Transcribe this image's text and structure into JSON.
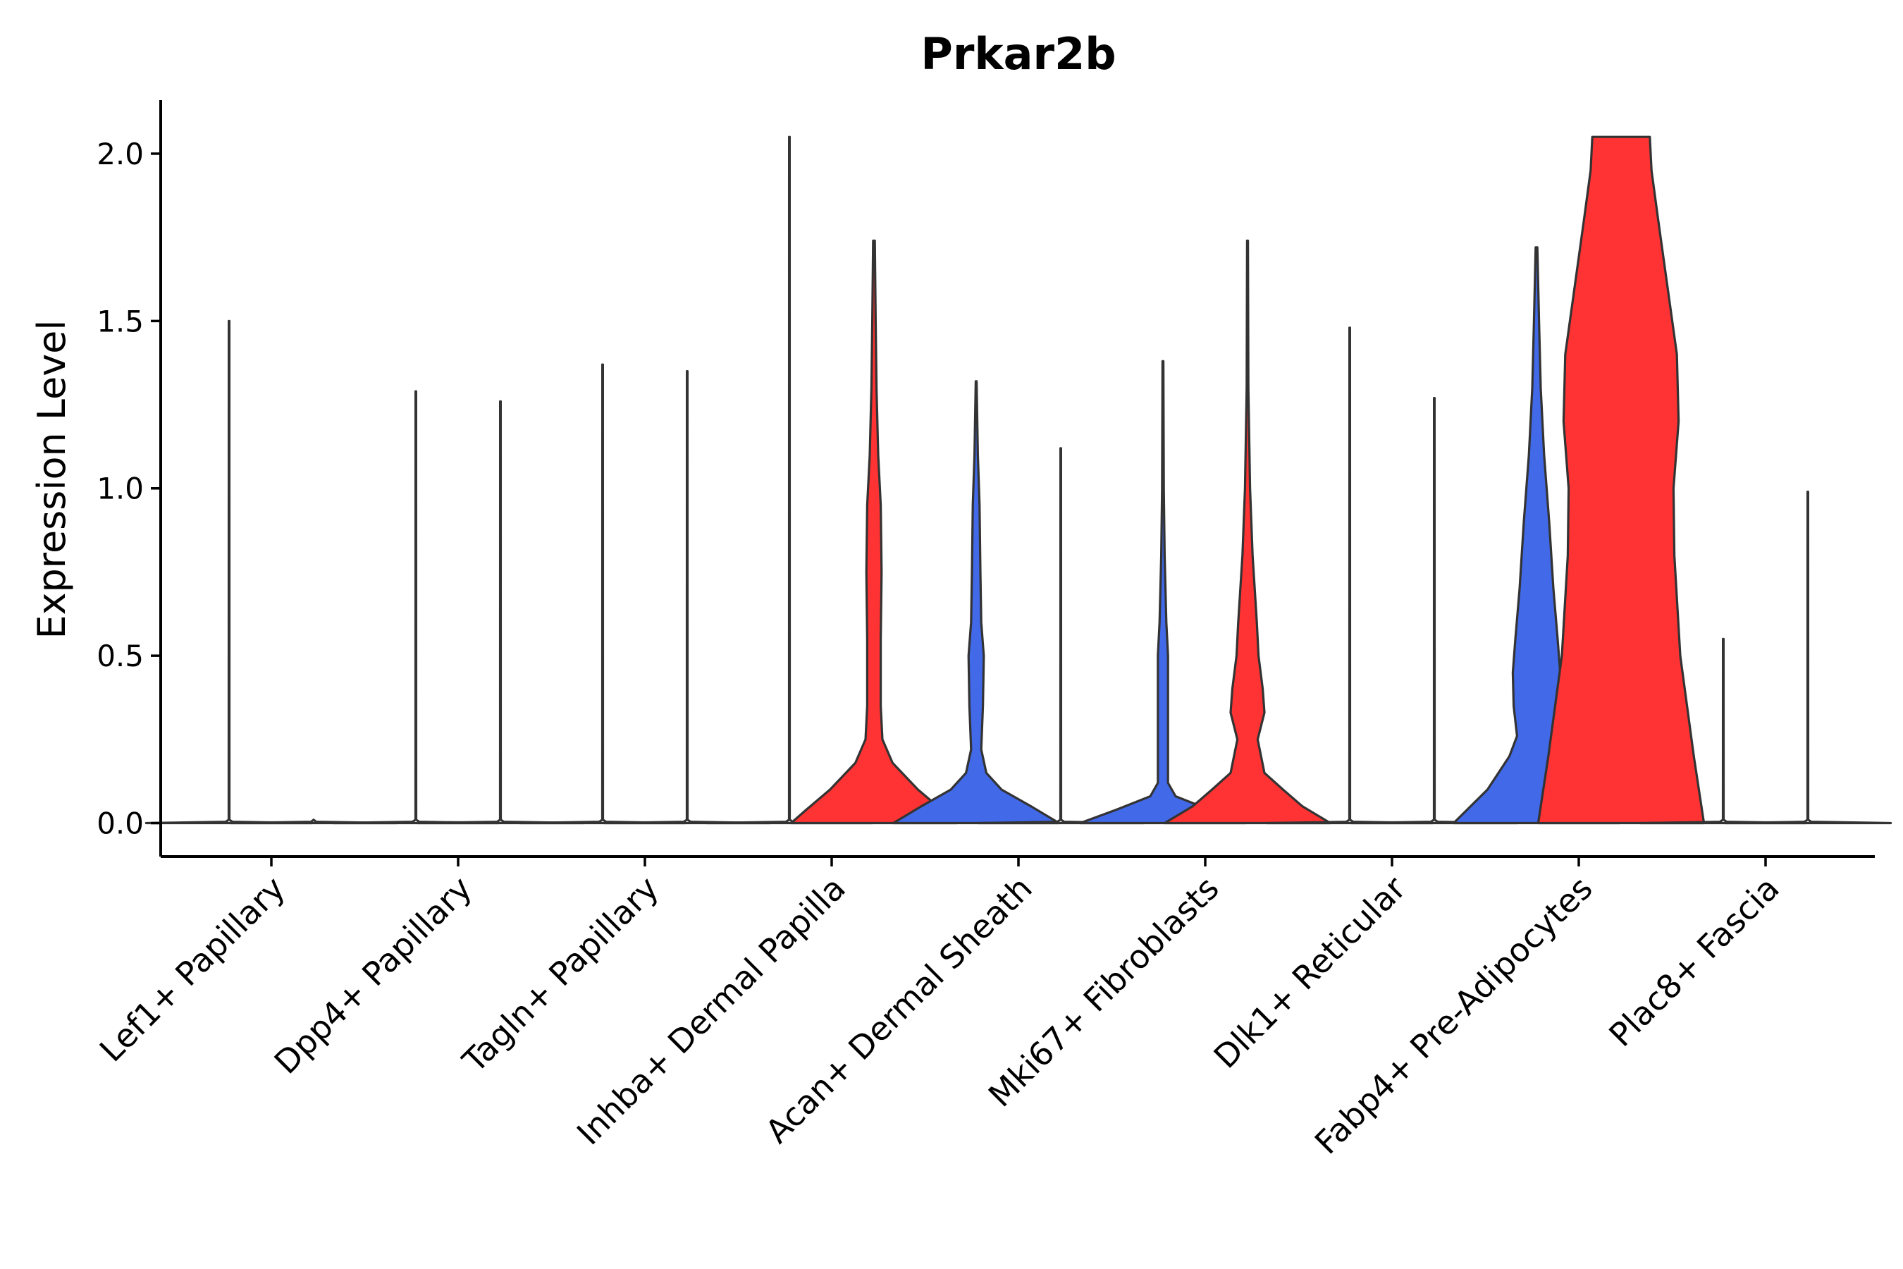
{
  "chart_data": {
    "type": "violin",
    "title": "Prkar2b",
    "xlabel": "",
    "ylabel": "Expression Level",
    "ylim": [
      -0.1,
      2.16
    ],
    "yticks": [
      "0.0",
      "0.5",
      "1.0",
      "1.5",
      "2.0"
    ],
    "ytick_values": [
      0.0,
      0.5,
      1.0,
      1.5,
      2.0
    ],
    "categories": [
      "Lef1+ Papillary",
      "Dpp4+ Papillary",
      "Tagln+ Papillary",
      "Inhba+ Dermal Papilla",
      "Acan+ Dermal Sheath",
      "Mki67+ Fibroblasts",
      "Dlk1+ Reticular",
      "Fabp4+ Pre-Adipocytes",
      "Plac8+ Fascia"
    ],
    "legend": "none",
    "colors": {
      "left": "#4169E8",
      "right": "#FF3333"
    },
    "violins": [
      {
        "category": "Lef1+ Papillary",
        "side": "left",
        "color": "#4169E8",
        "max": 1.5,
        "profile": [
          [
            0,
            0.98
          ],
          [
            0.004,
            0.04
          ],
          [
            0.01,
            0.004
          ],
          [
            1.5,
            0.003
          ]
        ]
      },
      {
        "category": "Lef1+ Papillary",
        "side": "right",
        "color": "#FF3333",
        "max": 0.0,
        "profile": [
          [
            0,
            0.98
          ],
          [
            0.004,
            0.03
          ],
          [
            0.01,
            0
          ]
        ]
      },
      {
        "category": "Dpp4+ Papillary",
        "side": "left",
        "color": "#4169E8",
        "max": 1.29,
        "profile": [
          [
            0,
            0.98
          ],
          [
            0.004,
            0.04
          ],
          [
            0.01,
            0.004
          ],
          [
            1.29,
            0.003
          ]
        ]
      },
      {
        "category": "Dpp4+ Papillary",
        "side": "right",
        "color": "#FF3333",
        "max": 1.26,
        "profile": [
          [
            0,
            0.98
          ],
          [
            0.004,
            0.04
          ],
          [
            0.01,
            0.004
          ],
          [
            1.26,
            0.003
          ]
        ]
      },
      {
        "category": "Tagln+ Papillary",
        "side": "left",
        "color": "#4169E8",
        "max": 1.37,
        "profile": [
          [
            0,
            0.98
          ],
          [
            0.004,
            0.04
          ],
          [
            0.01,
            0.004
          ],
          [
            1.37,
            0.003
          ]
        ]
      },
      {
        "category": "Tagln+ Papillary",
        "side": "right",
        "color": "#FF3333",
        "max": 1.35,
        "profile": [
          [
            0,
            0.98
          ],
          [
            0.004,
            0.04
          ],
          [
            0.01,
            0.004
          ],
          [
            1.35,
            0.003
          ]
        ]
      },
      {
        "category": "Inhba+ Dermal Papilla",
        "side": "left",
        "color": "#4169E8",
        "max": 2.05,
        "profile": [
          [
            0,
            0.98
          ],
          [
            0.004,
            0.04
          ],
          [
            0.01,
            0.004
          ],
          [
            2.05,
            0.003
          ]
        ]
      },
      {
        "category": "Inhba+ Dermal Papilla",
        "side": "right",
        "color": "#FF3333",
        "max": 1.74,
        "profile": [
          [
            0,
            0.98
          ],
          [
            0.04,
            0.8
          ],
          [
            0.1,
            0.52
          ],
          [
            0.18,
            0.22
          ],
          [
            0.25,
            0.1
          ],
          [
            0.35,
            0.08
          ],
          [
            0.55,
            0.08
          ],
          [
            0.75,
            0.09
          ],
          [
            0.95,
            0.08
          ],
          [
            1.1,
            0.05
          ],
          [
            1.3,
            0.03
          ],
          [
            1.5,
            0.02
          ],
          [
            1.74,
            0.01
          ]
        ]
      },
      {
        "category": "Acan+ Dermal Sheath",
        "side": "left",
        "color": "#4169E8",
        "max": 1.32,
        "profile": [
          [
            0,
            0.98
          ],
          [
            0.05,
            0.65
          ],
          [
            0.1,
            0.3
          ],
          [
            0.15,
            0.12
          ],
          [
            0.22,
            0.06
          ],
          [
            0.35,
            0.08
          ],
          [
            0.5,
            0.09
          ],
          [
            0.6,
            0.06
          ],
          [
            0.75,
            0.05
          ],
          [
            0.95,
            0.04
          ],
          [
            1.1,
            0.02
          ],
          [
            1.32,
            0.005
          ]
        ]
      },
      {
        "category": "Acan+ Dermal Sheath",
        "side": "right",
        "color": "#FF3333",
        "max": 1.12,
        "profile": [
          [
            0,
            0.98
          ],
          [
            0.004,
            0.04
          ],
          [
            0.01,
            0.004
          ],
          [
            1.12,
            0.003
          ]
        ]
      },
      {
        "category": "Mki67+ Fibroblasts",
        "side": "left",
        "color": "#4169E8",
        "max": 1.38,
        "profile": [
          [
            0,
            0.98
          ],
          [
            0.04,
            0.55
          ],
          [
            0.08,
            0.15
          ],
          [
            0.12,
            0.06
          ],
          [
            0.3,
            0.06
          ],
          [
            0.5,
            0.06
          ],
          [
            0.6,
            0.04
          ],
          [
            0.8,
            0.02
          ],
          [
            1.0,
            0.01
          ],
          [
            1.38,
            0.005
          ]
        ]
      },
      {
        "category": "Mki67+ Fibroblasts",
        "side": "right",
        "color": "#FF3333",
        "max": 1.74,
        "profile": [
          [
            0,
            0.98
          ],
          [
            0.05,
            0.65
          ],
          [
            0.1,
            0.42
          ],
          [
            0.15,
            0.2
          ],
          [
            0.25,
            0.12
          ],
          [
            0.33,
            0.2
          ],
          [
            0.4,
            0.18
          ],
          [
            0.5,
            0.13
          ],
          [
            0.6,
            0.11
          ],
          [
            0.8,
            0.06
          ],
          [
            1.0,
            0.03
          ],
          [
            1.3,
            0.01
          ],
          [
            1.74,
            0.005
          ]
        ]
      },
      {
        "category": "Dlk1+ Reticular",
        "side": "left",
        "color": "#4169E8",
        "max": 1.48,
        "profile": [
          [
            0,
            0.98
          ],
          [
            0.004,
            0.04
          ],
          [
            0.01,
            0.004
          ],
          [
            1.48,
            0.003
          ]
        ]
      },
      {
        "category": "Dlk1+ Reticular",
        "side": "right",
        "color": "#FF3333",
        "max": 1.27,
        "profile": [
          [
            0,
            0.98
          ],
          [
            0.004,
            0.04
          ],
          [
            0.01,
            0.004
          ],
          [
            1.27,
            0.003
          ]
        ]
      },
      {
        "category": "Fabp4+ Pre-Adipocytes",
        "side": "left",
        "color": "#4169E8",
        "max": 1.72,
        "profile": [
          [
            0,
            0.98
          ],
          [
            0.1,
            0.58
          ],
          [
            0.2,
            0.32
          ],
          [
            0.26,
            0.23
          ],
          [
            0.35,
            0.27
          ],
          [
            0.45,
            0.28
          ],
          [
            0.55,
            0.25
          ],
          [
            0.7,
            0.2
          ],
          [
            0.9,
            0.15
          ],
          [
            1.1,
            0.09
          ],
          [
            1.3,
            0.05
          ],
          [
            1.5,
            0.03
          ],
          [
            1.72,
            0.01
          ]
        ]
      },
      {
        "category": "Fabp4+ Pre-Adipocytes",
        "side": "right",
        "color": "#FF3333",
        "max": 2.05,
        "profile": [
          [
            0,
            0.98
          ],
          [
            0.2,
            0.86
          ],
          [
            0.5,
            0.7
          ],
          [
            0.8,
            0.63
          ],
          [
            1.0,
            0.62
          ],
          [
            1.2,
            0.68
          ],
          [
            1.4,
            0.66
          ],
          [
            1.6,
            0.55
          ],
          [
            1.8,
            0.44
          ],
          [
            1.95,
            0.36
          ],
          [
            2.05,
            0.34
          ]
        ]
      },
      {
        "category": "Plac8+ Fascia",
        "side": "left",
        "color": "#4169E8",
        "max": 0.55,
        "profile": [
          [
            0,
            0.98
          ],
          [
            0.004,
            0.04
          ],
          [
            0.01,
            0.004
          ],
          [
            0.55,
            0.003
          ]
        ]
      },
      {
        "category": "Plac8+ Fascia",
        "side": "right",
        "color": "#FF3333",
        "max": 0.99,
        "profile": [
          [
            0,
            0.98
          ],
          [
            0.004,
            0.04
          ],
          [
            0.01,
            0.004
          ],
          [
            0.99,
            0.003
          ]
        ]
      }
    ]
  }
}
